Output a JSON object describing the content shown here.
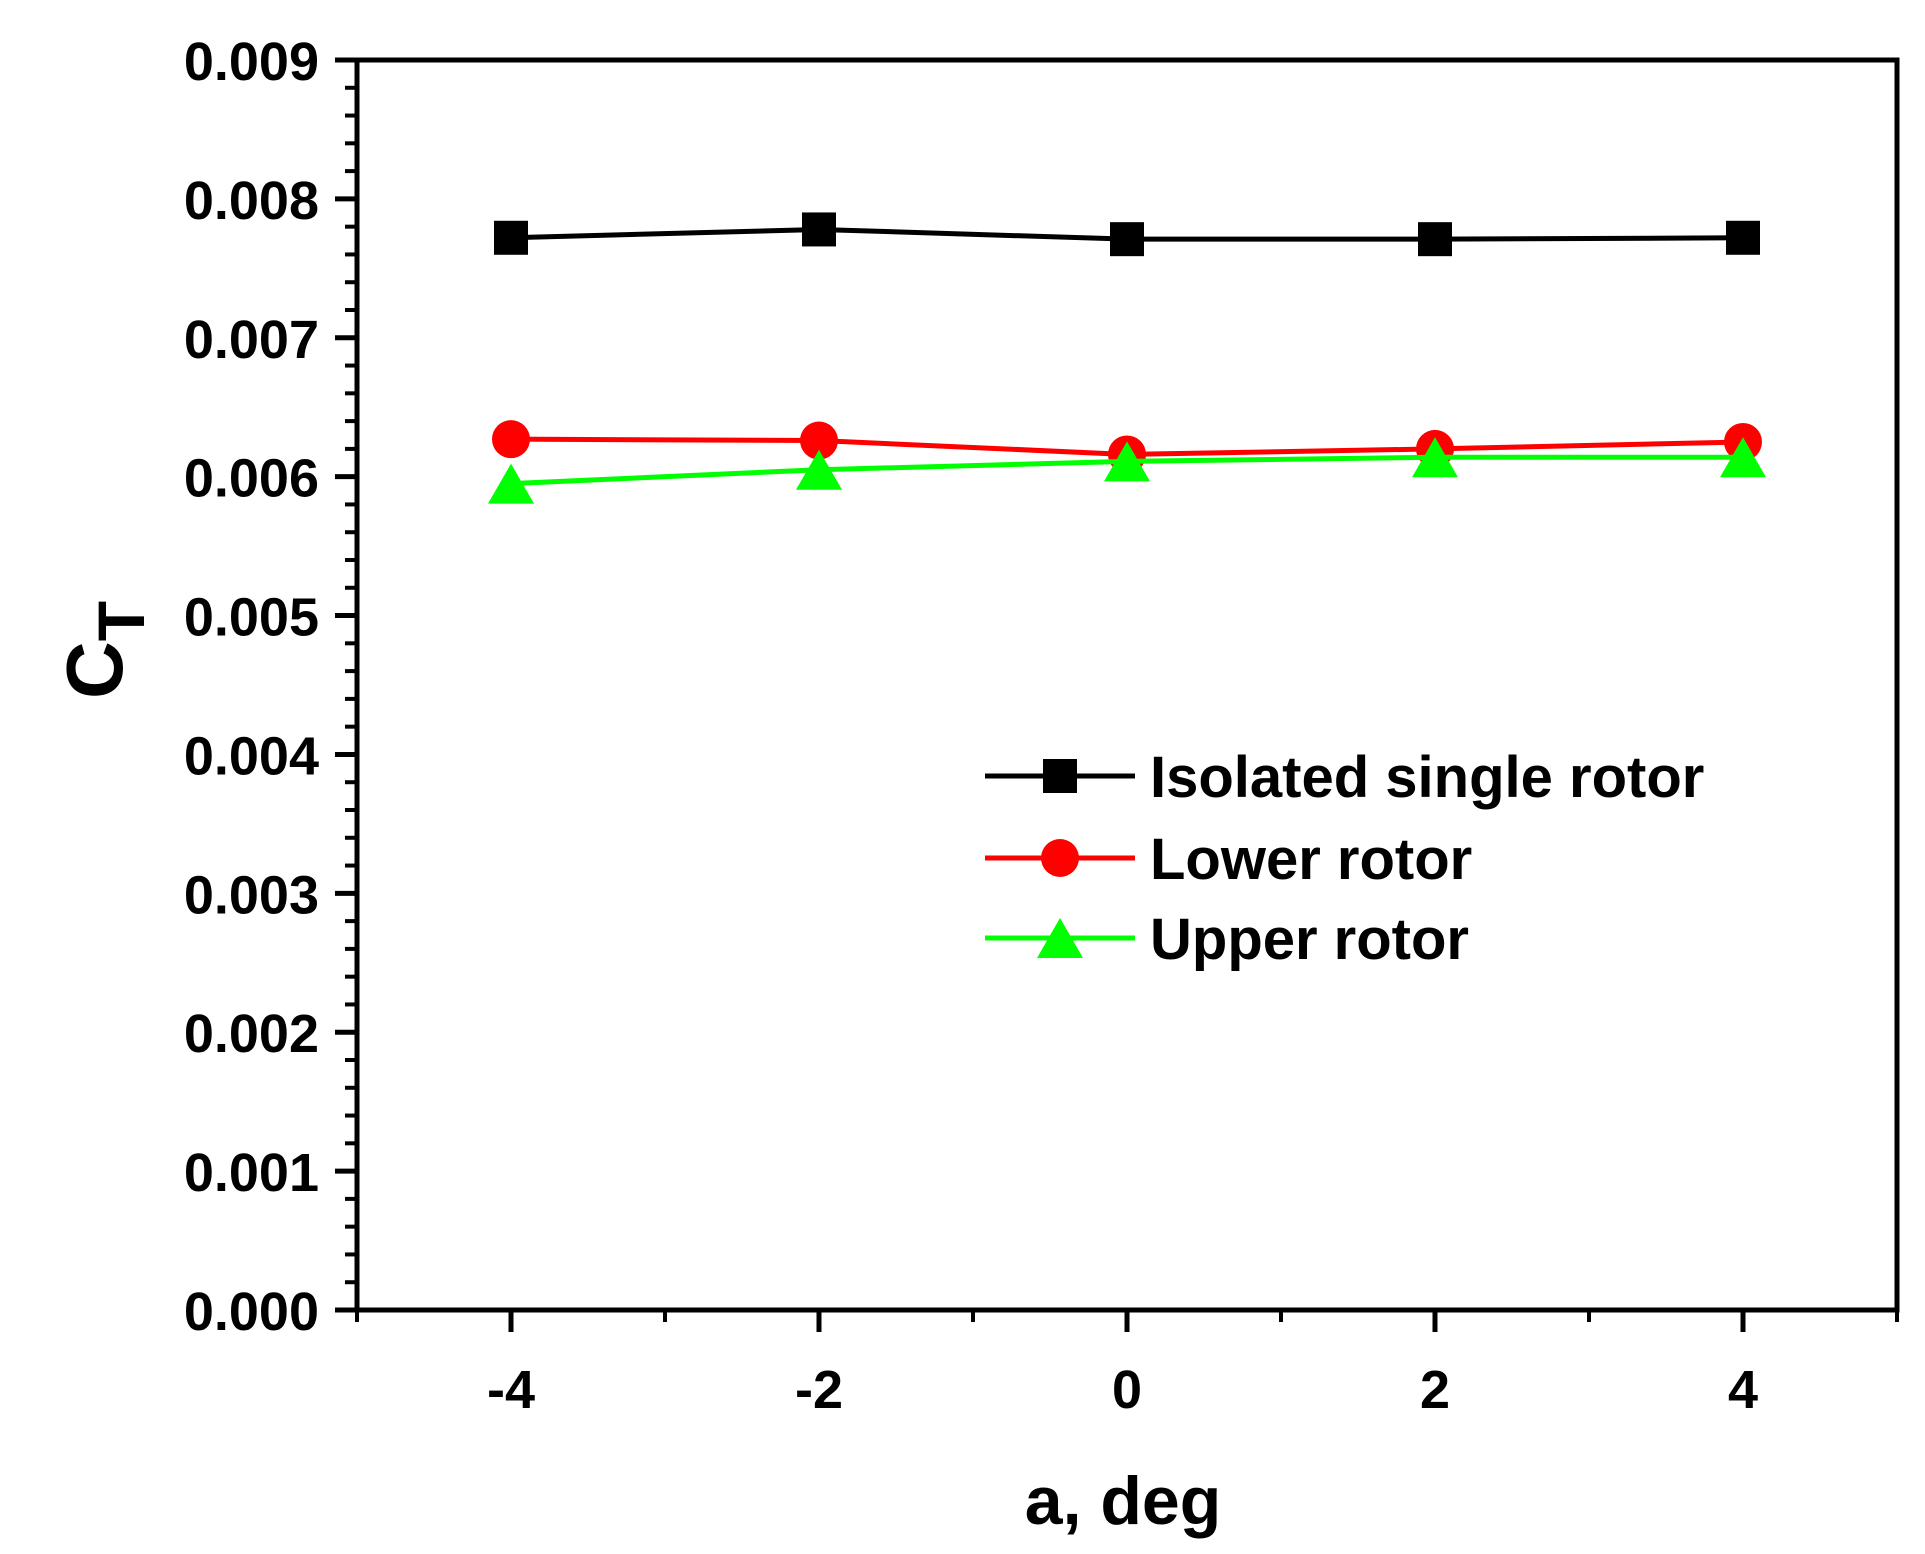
{
  "chart_data": {
    "type": "line",
    "title": "",
    "xlabel": "a, deg",
    "ylabel": {
      "main": "C",
      "subscript": "T"
    },
    "x": [
      -4,
      -2,
      0,
      2,
      4
    ],
    "xlim": [
      -5,
      5
    ],
    "ylim": [
      0,
      0.009
    ],
    "x_ticks": [
      "-4",
      "-2",
      "0",
      "2",
      "4"
    ],
    "y_ticks": [
      "0.000",
      "0.001",
      "0.002",
      "0.003",
      "0.004",
      "0.005",
      "0.006",
      "0.007",
      "0.008",
      "0.009"
    ],
    "grid": false,
    "legend_position": "center-right",
    "series": [
      {
        "name": "Isolated single rotor",
        "color": "#000000",
        "marker": "square",
        "values": [
          0.00772,
          0.00778,
          0.00771,
          0.00771,
          0.00772
        ]
      },
      {
        "name": "Lower rotor",
        "color": "#ff0000",
        "marker": "circle",
        "values": [
          0.00627,
          0.00626,
          0.00616,
          0.0062,
          0.00625
        ]
      },
      {
        "name": "Upper rotor",
        "color": "#00ff00",
        "marker": "triangle",
        "values": [
          0.00595,
          0.00605,
          0.00611,
          0.00614,
          0.00614
        ]
      }
    ]
  }
}
